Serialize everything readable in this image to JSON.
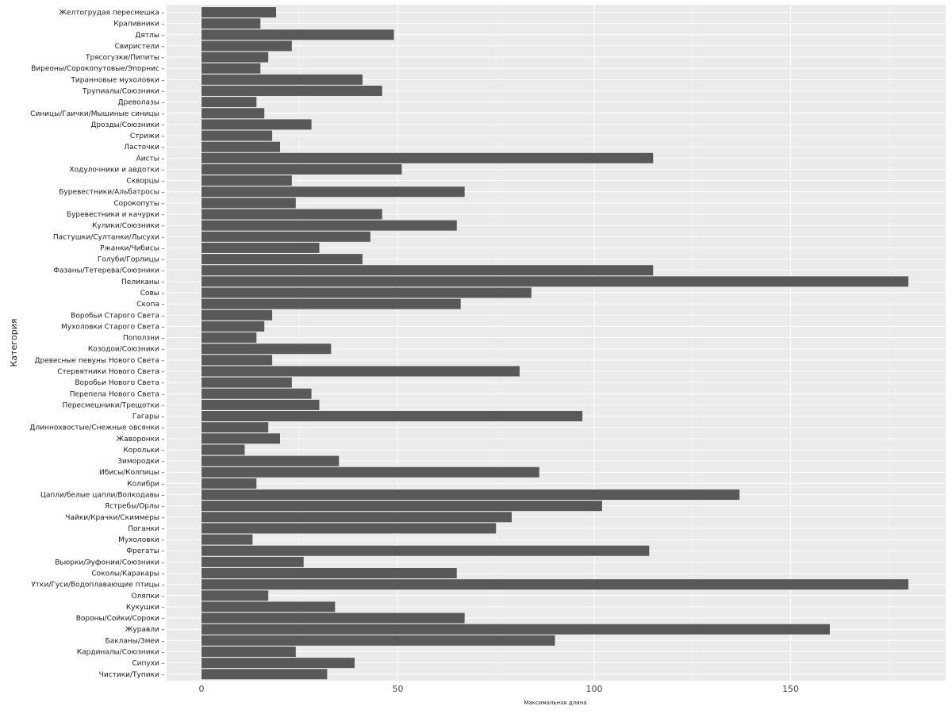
{
  "chart_data": {
    "type": "bar",
    "orientation": "horizontal",
    "xlabel": "Максимальная длина",
    "ylabel": "Категория",
    "xlim": [
      0,
      187
    ],
    "xticks": [
      0,
      50,
      100,
      150
    ],
    "grid": true,
    "bar_color": "#595959",
    "panel_color": "#ebebeb",
    "categories": [
      "Желтогрудая пересмешка",
      "Крапивники",
      "Дятлы",
      "Свиристели",
      "Трясогузки/Пипиты",
      "Виреоны/Сорокопутовые/Эпорнис",
      "Тиранновые мухоловки",
      "Трупиалы/Союзники",
      "Древолазы",
      "Синицы/Гаички/Мышиные синицы",
      "Дрозды/Союзники",
      "Стрижи",
      "Ласточки",
      "Аисты",
      "Ходулочники и авдотки",
      "Скворцы",
      "Буревестники/Альбатросы",
      "Сорокопуты",
      "Буревестники и качурки",
      "Кулики/Союзники",
      "Пастушки/Султанки/Лысухи",
      "Ржанки/Чибисы",
      "Голуби/Горлицы",
      "Фазаны/Тетерева/Союзники",
      "Пеликаны",
      "Совы",
      "Скопа",
      "Воробьи Старого Света",
      "Мухоловки Старого Света",
      "Поползни",
      "Козодои/Союзники",
      "Древесные певуны Нового Света",
      "Стервятники Нового Света",
      "Воробьи Нового Света",
      "Перепела Нового Света",
      "Пересмешники/Трещотки",
      "Гагары",
      "Длиннохвостые/Снежные овсянки",
      "Жаворонки",
      "Корольки",
      "Зимородки",
      "Ибисы/Колпицы",
      "Колибри",
      "Цапли/белые цапли/Волкодавы",
      "Ястребы/Орлы",
      "Чайки/Крачки/Скиммеры",
      "Поганки",
      "Мухоловки",
      "Фрегаты",
      "Вьюрки/Эуфонии/Союзники",
      "Соколы/Каракары",
      "Утки/Гуси/Водоплавающие птицы",
      "Оляпки",
      "Кукушки",
      "Вороны/Сойки/Сороки",
      "Журавли",
      "Бакланы/Змеи",
      "Кардиналы/Союзники",
      "Сипухи",
      "Чистики/Тупики"
    ],
    "values": [
      19,
      15,
      49,
      23,
      17,
      15,
      41,
      46,
      14,
      16,
      28,
      18,
      20,
      115,
      51,
      23,
      67,
      24,
      46,
      65,
      43,
      30,
      41,
      115,
      180,
      84,
      66,
      18,
      16,
      14,
      33,
      18,
      81,
      23,
      28,
      30,
      97,
      17,
      20,
      11,
      35,
      86,
      14,
      137,
      102,
      79,
      75,
      13,
      114,
      26,
      65,
      180,
      17,
      34,
      67,
      160,
      90,
      24,
      39,
      32
    ]
  }
}
